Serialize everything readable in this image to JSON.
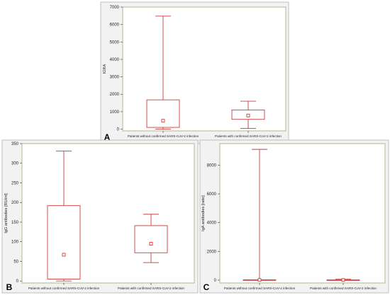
{
  "chart_data": [
    {
      "type": "boxplot",
      "panel_label": "A",
      "ylabel": "IGRA",
      "ylim": [
        -100,
        7000
      ],
      "y_ticks": [
        "0",
        "1000",
        "2000",
        "3000",
        "4000",
        "5000",
        "6000",
        "7000"
      ],
      "categories": [
        "Patients without confirmed SARS-CoV-2 infection",
        "Patients with confirmed SARS-CoV-2 infection"
      ],
      "boxes": [
        {
          "min": 0,
          "q1": 100,
          "median": 480,
          "q3": 1680,
          "max": 6480
        },
        {
          "min": 40,
          "q1": 560,
          "median": 780,
          "q3": 1100,
          "max": 1600
        }
      ]
    },
    {
      "type": "boxplot",
      "panel_label": "B",
      "ylabel": "IgG antibodies [RU/ml]",
      "ylim": [
        -5,
        350
      ],
      "y_ticks": [
        "0",
        "50",
        "100",
        "150",
        "200",
        "250",
        "300",
        "350"
      ],
      "categories": [
        "Patients without confirmed SARS-CoV-2 infection",
        "Patients with confirmed SARS-CoV-2 infection"
      ],
      "boxes": [
        {
          "min": 0,
          "q1": 5,
          "median": 67,
          "q3": 192,
          "max": 331
        },
        {
          "min": 47,
          "q1": 72,
          "median": 95,
          "q3": 141,
          "max": 170
        }
      ]
    },
    {
      "type": "boxplot",
      "panel_label": "C",
      "ylabel": "IgA antibodies [ratio]",
      "ylim": [
        -200,
        9500
      ],
      "y_ticks": [
        "0",
        "2000",
        "4000",
        "6000",
        "8000"
      ],
      "categories": [
        "Patients without confirmed SARS-CoV-2 infection",
        "Patients with confirmed SARS-CoV-2 infection"
      ],
      "boxes": [
        {
          "min": 0,
          "q1": 5,
          "median": 10,
          "q3": 20,
          "max": 9100
        },
        {
          "min": 0,
          "q1": 3,
          "median": 8,
          "q3": 15,
          "max": 60
        }
      ]
    }
  ]
}
